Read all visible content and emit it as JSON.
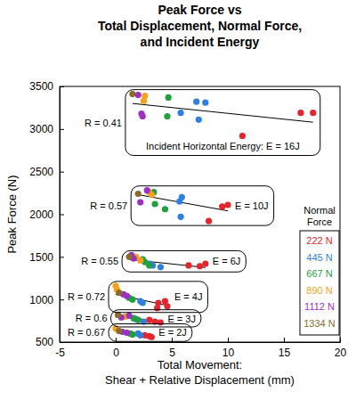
{
  "chart_data": {
    "type": "scatter",
    "title": "Peak Force vs\nTotal Displacement, Normal Force,\nand Incident Energy",
    "x_label": "Total Movement:\nShear + Relative Displacement (mm)",
    "y_label": "Peak Force (N)",
    "xlim": [
      -5,
      20
    ],
    "ylim": [
      500,
      3500
    ],
    "xticks": [
      -5,
      0,
      5,
      10,
      15,
      20
    ],
    "yticks": [
      500,
      1000,
      1500,
      2000,
      2500,
      3000,
      3500
    ],
    "legend": "right",
    "legend_title": "Normal Force",
    "marker": "circle",
    "series": [
      {
        "name": "222 N",
        "color": "#e3262b",
        "x": [
          16.5,
          17.6,
          11.3,
          9.5,
          10.0,
          8.3,
          6.5,
          7.5,
          8.0,
          3.8,
          4.4,
          4.6,
          3.7,
          3.0,
          3.5,
          4.0,
          2.6,
          3.0,
          3.2
        ],
        "values": [
          3190,
          3190,
          2920,
          2090,
          2110,
          1920,
          1400,
          1390,
          1420,
          960,
          980,
          920,
          900,
          760,
          740,
          730,
          580,
          570,
          560
        ]
      },
      {
        "name": "445 N",
        "color": "#2f7fe0",
        "x": [
          7.2,
          8.0,
          5.8,
          7.4,
          5.9,
          5.8,
          5.7,
          3.3,
          3.0,
          4.0,
          2.2,
          2.4,
          1.8,
          2.5,
          2.0,
          2.2
        ],
        "values": [
          3320,
          3310,
          3190,
          3110,
          2200,
          1970,
          2150,
          1400,
          1420,
          1380,
          980,
          960,
          770,
          740,
          600,
          580
        ]
      },
      {
        "name": "667 N",
        "color": "#22a040",
        "x": [
          4.7,
          4.6,
          3.4,
          4.4,
          3.5,
          2.4,
          3.0,
          2.6,
          1.2,
          1.5,
          1.6,
          2.0,
          1.3,
          1.5
        ],
        "values": [
          3370,
          3150,
          2260,
          2060,
          2120,
          1470,
          1400,
          1440,
          1020,
          1000,
          780,
          760,
          600,
          590
        ]
      },
      {
        "name": "890 N",
        "color": "#f5a11e",
        "x": [
          2.6,
          2.5,
          3.0,
          3.2,
          1.8,
          2.2,
          0.0,
          0.1,
          0.9,
          0.0
        ],
        "values": [
          3390,
          3330,
          2260,
          2230,
          1500,
          1460,
          1160,
          1120,
          800,
          660
        ]
      },
      {
        "name": "1112 N",
        "color": "#9b30c2",
        "x": [
          2.0,
          2.3,
          2.4,
          2.8,
          2.2,
          1.4,
          1.6,
          0.7,
          1.0,
          0.5,
          1.2,
          0.6,
          1.0
        ],
        "values": [
          3400,
          3180,
          3150,
          2280,
          2140,
          1520,
          1480,
          1060,
          1040,
          790,
          810,
          620,
          610
        ]
      },
      {
        "name": "1334 N",
        "color": "#8a6b2a",
        "x": [
          1.5,
          2.0,
          1.2,
          0.3,
          0.2,
          0.3
        ],
        "values": [
          3410,
          2240,
          1500,
          1080,
          820,
          630
        ]
      }
    ],
    "trend_lines": [
      {
        "label": "E = 2J",
        "r_label": "R = 0.67",
        "x": [
          0.0,
          3.2
        ],
        "values": [
          630,
          570
        ]
      },
      {
        "label": "E = 3J",
        "r_label": "R = 0.6",
        "x": [
          0.2,
          4.0
        ],
        "values": [
          810,
          735
        ]
      },
      {
        "label": "E = 4J",
        "r_label": "R = 0.72",
        "x": [
          0.0,
          4.6
        ],
        "values": [
          1060,
          930
        ]
      },
      {
        "label": "E = 6J",
        "r_label": "R = 0.55",
        "x": [
          1.2,
          8.0
        ],
        "values": [
          1470,
          1375
        ]
      },
      {
        "label": "E = 10J",
        "r_label": "R = 0.57",
        "x": [
          2.0,
          10.0
        ],
        "values": [
          2230,
          2040
        ]
      },
      {
        "label": "Incident Horizontal Energy: E = 16J",
        "r_label": "R = 0.41",
        "x": [
          1.5,
          17.6
        ],
        "values": [
          3300,
          3080
        ]
      }
    ]
  }
}
